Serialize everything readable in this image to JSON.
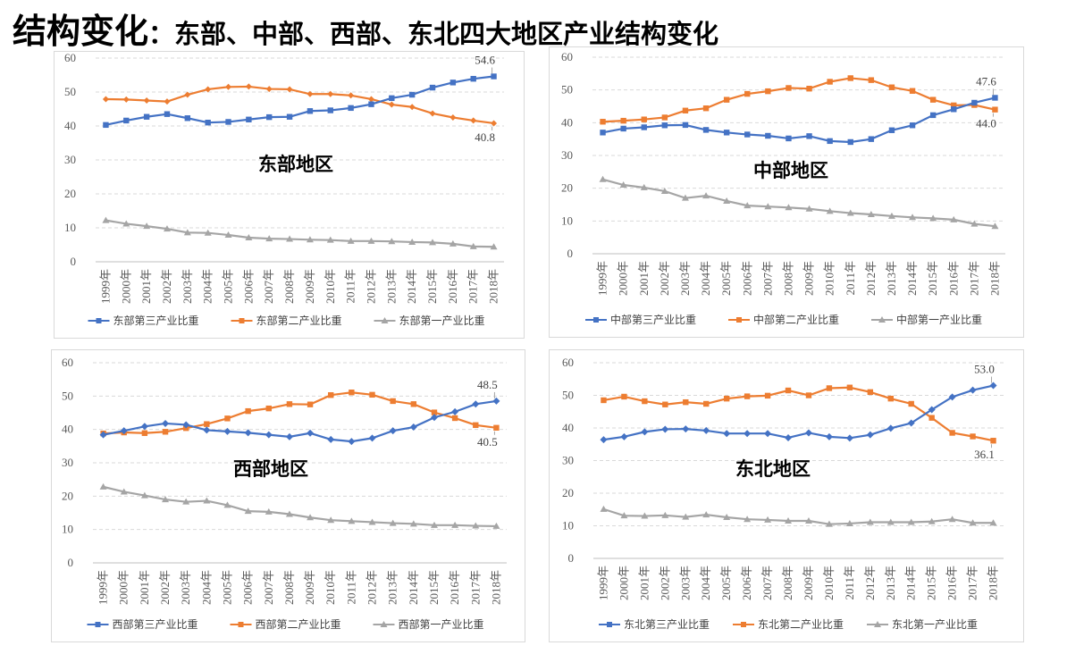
{
  "header": {
    "title_main": "结构变化",
    "title_sub": "：东部、中部、西部、东北四大地区产业结构变化"
  },
  "colors": {
    "tertiary": "#4472C4",
    "secondary": "#ED7D31",
    "primary": "#A5A5A5",
    "grid": "#d9d9d9"
  },
  "chart_data": [
    {
      "type": "line",
      "region_label": "东部地区",
      "categories": [
        "1999年",
        "2000年",
        "2001年",
        "2002年",
        "2003年",
        "2004年",
        "2005年",
        "2006年",
        "2007年",
        "2008年",
        "2009年",
        "2010年",
        "2011年",
        "2012年",
        "2013年",
        "2014年",
        "2015年",
        "2016年",
        "2017年",
        "2018年"
      ],
      "ylim": [
        0,
        60
      ],
      "yticks": [
        0,
        10,
        20,
        30,
        40,
        50,
        60
      ],
      "marker": "square",
      "series": [
        {
          "name": "东部第三产业比重",
          "key": "tertiary",
          "values": [
            40.3,
            41.6,
            42.7,
            43.5,
            42.3,
            41.0,
            41.2,
            41.9,
            42.6,
            42.7,
            44.4,
            44.6,
            45.3,
            46.4,
            48.2,
            49.2,
            51.3,
            52.8,
            53.9,
            54.6
          ]
        },
        {
          "name": "东部第二产业比重",
          "key": "secondary",
          "values": [
            47.9,
            47.8,
            47.5,
            47.2,
            49.2,
            50.8,
            51.5,
            51.6,
            50.9,
            50.8,
            49.4,
            49.4,
            49.0,
            47.9,
            46.3,
            45.6,
            43.7,
            42.5,
            41.6,
            40.8
          ]
        },
        {
          "name": "东部第一产业比重",
          "key": "primary",
          "values": [
            12.2,
            11.2,
            10.5,
            9.7,
            8.6,
            8.5,
            7.9,
            7.1,
            6.8,
            6.7,
            6.5,
            6.4,
            6.1,
            6.1,
            6.0,
            5.8,
            5.7,
            5.3,
            4.5,
            4.4
          ]
        }
      ],
      "annotations": [
        {
          "text": "54.6",
          "series": 0,
          "index": 19,
          "pos": "above"
        },
        {
          "text": "40.8",
          "series": 1,
          "index": 19,
          "pos": "below"
        }
      ]
    },
    {
      "type": "line",
      "region_label": "中部地区",
      "categories": [
        "1999年",
        "2000年",
        "2001年",
        "2002年",
        "2003年",
        "2004年",
        "2005年",
        "2006年",
        "2007年",
        "2008年",
        "2009年",
        "2010年",
        "2011年",
        "2012年",
        "2013年",
        "2014年",
        "2015年",
        "2016年",
        "2017年",
        "2018年"
      ],
      "ylim": [
        0,
        60
      ],
      "yticks": [
        0,
        10,
        20,
        30,
        40,
        50,
        60
      ],
      "marker": "square",
      "series": [
        {
          "name": "中部第三产业比重",
          "key": "tertiary",
          "values": [
            37.0,
            38.2,
            38.6,
            39.2,
            39.3,
            37.8,
            37.0,
            36.4,
            36.0,
            35.2,
            35.9,
            34.4,
            34.1,
            35.0,
            37.7,
            39.2,
            42.3,
            44.1,
            46.1,
            47.6
          ]
        },
        {
          "name": "中部第二产业比重",
          "key": "secondary",
          "values": [
            40.3,
            40.6,
            41.0,
            41.6,
            43.7,
            44.4,
            47.0,
            48.8,
            49.6,
            50.6,
            50.4,
            52.5,
            53.6,
            53.0,
            50.8,
            49.7,
            47.0,
            45.3,
            45.4,
            44.0
          ]
        },
        {
          "name": "中部第一产业比重",
          "key": "primary",
          "values": [
            22.7,
            21.0,
            20.2,
            19.1,
            17.0,
            17.7,
            16.1,
            14.7,
            14.4,
            14.1,
            13.7,
            13.0,
            12.4,
            12.0,
            11.5,
            11.1,
            10.8,
            10.4,
            9.1,
            8.4
          ]
        }
      ],
      "annotations": [
        {
          "text": "47.6",
          "series": 0,
          "index": 19,
          "pos": "above"
        },
        {
          "text": "44.0",
          "series": 1,
          "index": 19,
          "pos": "below"
        }
      ]
    },
    {
      "type": "line",
      "region_label": "西部地区",
      "categories": [
        "1999年",
        "2000年",
        "2001年",
        "2002年",
        "2003年",
        "2004年",
        "2005年",
        "2006年",
        "2007年",
        "2008年",
        "2009年",
        "2010年",
        "2011年",
        "2012年",
        "2013年",
        "2014年",
        "2015年",
        "2016年",
        "2017年",
        "2018年"
      ],
      "ylim": [
        0,
        60
      ],
      "yticks": [
        0,
        10,
        20,
        30,
        40,
        50,
        60
      ],
      "marker": "square",
      "series": [
        {
          "name": "西部第三产业比重",
          "key": "tertiary",
          "values": [
            38.4,
            39.6,
            40.9,
            41.8,
            41.4,
            39.8,
            39.4,
            39.0,
            38.4,
            37.8,
            38.9,
            37.0,
            36.4,
            37.4,
            39.6,
            40.7,
            43.6,
            45.3,
            47.6,
            48.5
          ]
        },
        {
          "name": "西部第二产业比重",
          "key": "secondary",
          "values": [
            38.8,
            39.1,
            38.9,
            39.3,
            40.4,
            41.6,
            43.3,
            45.5,
            46.3,
            47.6,
            47.5,
            50.3,
            51.1,
            50.4,
            48.5,
            47.6,
            45.1,
            43.4,
            41.3,
            40.5
          ]
        },
        {
          "name": "西部第一产业比重",
          "key": "primary",
          "values": [
            22.8,
            21.3,
            20.2,
            19.0,
            18.3,
            18.6,
            17.3,
            15.5,
            15.3,
            14.6,
            13.6,
            12.8,
            12.5,
            12.2,
            11.9,
            11.7,
            11.3,
            11.3,
            11.1,
            11.0
          ]
        }
      ],
      "annotations": [
        {
          "text": "48.5",
          "series": 0,
          "index": 19,
          "pos": "above"
        },
        {
          "text": "40.5",
          "series": 1,
          "index": 19,
          "pos": "below"
        }
      ]
    },
    {
      "type": "line",
      "region_label": "东北地区",
      "categories": [
        "1999年",
        "2000年",
        "2001年",
        "2002年",
        "2003年",
        "2004年",
        "2005年",
        "2006年",
        "2007年",
        "2008年",
        "2009年",
        "2010年",
        "2011年",
        "2012年",
        "2013年",
        "2014年",
        "2015年",
        "2016年",
        "2017年",
        "2018年"
      ],
      "ylim": [
        0,
        60
      ],
      "yticks": [
        0,
        10,
        20,
        30,
        40,
        50,
        60
      ],
      "marker": "diamond",
      "series": [
        {
          "name": "东北第三产业比重",
          "key": "tertiary",
          "values": [
            36.4,
            37.3,
            38.8,
            39.6,
            39.7,
            39.2,
            38.3,
            38.3,
            38.3,
            37.0,
            38.5,
            37.3,
            36.9,
            37.9,
            39.9,
            41.5,
            45.6,
            49.5,
            51.6,
            53.0
          ]
        },
        {
          "name": "东北第二产业比重",
          "key": "secondary",
          "values": [
            48.5,
            49.6,
            48.2,
            47.2,
            47.9,
            47.4,
            49.0,
            49.7,
            49.9,
            51.5,
            50.0,
            52.2,
            52.4,
            51.0,
            49.0,
            47.4,
            43.1,
            38.5,
            37.4,
            36.1
          ]
        },
        {
          "name": "东北第一产业比重",
          "key": "primary",
          "values": [
            15.1,
            13.1,
            13.0,
            13.2,
            12.7,
            13.4,
            12.6,
            12.0,
            11.8,
            11.5,
            11.5,
            10.5,
            10.7,
            11.1,
            11.1,
            11.1,
            11.3,
            12.0,
            10.9,
            10.9
          ]
        }
      ],
      "annotations": [
        {
          "text": "53.0",
          "series": 0,
          "index": 19,
          "pos": "above"
        },
        {
          "text": "36.1",
          "series": 1,
          "index": 19,
          "pos": "below"
        }
      ]
    }
  ]
}
